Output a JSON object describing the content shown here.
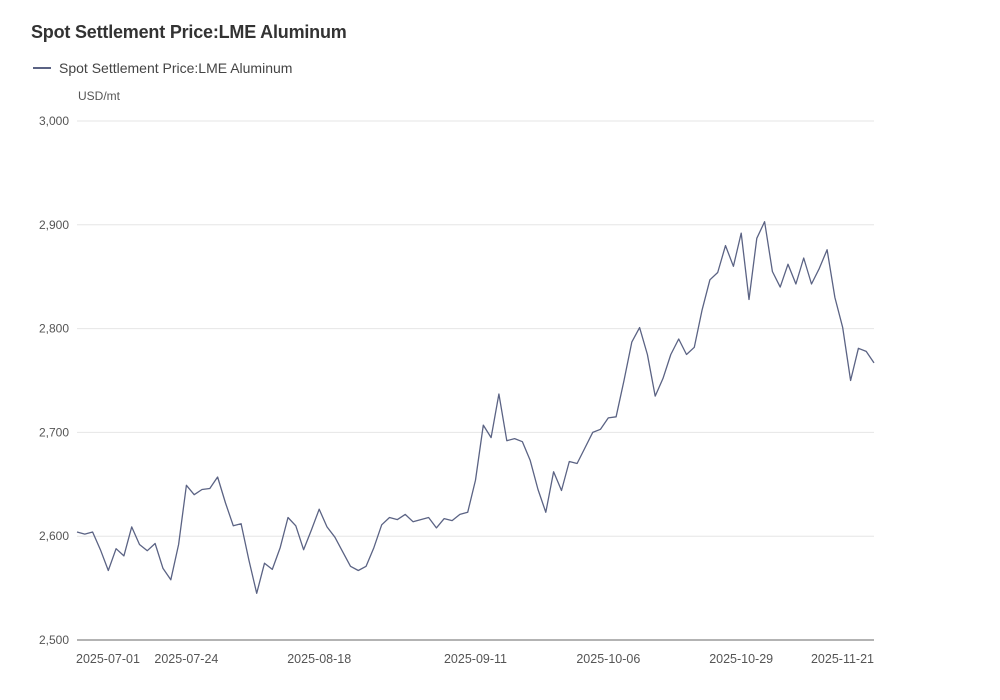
{
  "header": {
    "title": "Spot Settlement Price:LME Aluminum",
    "legend_label": "Spot Settlement Price:LME Aluminum",
    "unit": "USD/mt"
  },
  "colors": {
    "line": "#5b6384",
    "grid": "#e6e6e6",
    "axis": "#9a9a9a"
  },
  "chart_data": {
    "type": "line",
    "title": "Spot Settlement Price:LME Aluminum",
    "xlabel": "",
    "ylabel": "USD/mt",
    "ylim": [
      2500,
      3000
    ],
    "yticks": [
      2500,
      2600,
      2700,
      2800,
      2900,
      3000
    ],
    "ytick_labels": [
      "2,500",
      "2,600",
      "2,700",
      "2,800",
      "2,900",
      "3,000"
    ],
    "xtick_labels": [
      "2025-07-01",
      "2025-07-24",
      "2025-08-18",
      "2025-09-11",
      "2025-10-06",
      "2025-10-29",
      "2025-11-21"
    ],
    "xtick_index": [
      0,
      14,
      31,
      51,
      68,
      85,
      98
    ],
    "grid": true,
    "legend_position": "top-left",
    "series": [
      {
        "name": "Spot Settlement Price:LME Aluminum",
        "values": [
          2604,
          2602,
          2604,
          2587,
          2567,
          2588,
          2581,
          2609,
          2592,
          2586,
          2593,
          2569,
          2558,
          2592,
          2649,
          2640,
          2645,
          2646,
          2657,
          2632,
          2610,
          2612,
          2577,
          2545,
          2574,
          2568,
          2589,
          2618,
          2610,
          2587,
          2606,
          2626,
          2609,
          2599,
          2585,
          2571,
          2567,
          2571,
          2589,
          2611,
          2618,
          2616,
          2621,
          2614,
          2616,
          2618,
          2608,
          2617,
          2615,
          2621,
          2623,
          2654,
          2707,
          2695,
          2737,
          2692,
          2694,
          2691,
          2673,
          2645,
          2623,
          2662,
          2644,
          2672,
          2670,
          2685,
          2700,
          2703,
          2714,
          2715,
          2750,
          2787,
          2801,
          2775,
          2735,
          2752,
          2775,
          2790,
          2775,
          2782,
          2818,
          2847,
          2854,
          2880,
          2860,
          2892,
          2828,
          2887,
          2903,
          2855,
          2840,
          2862,
          2843,
          2868,
          2843,
          2858,
          2876,
          2830,
          2801,
          2750,
          2781,
          2778,
          2767
        ]
      }
    ]
  }
}
